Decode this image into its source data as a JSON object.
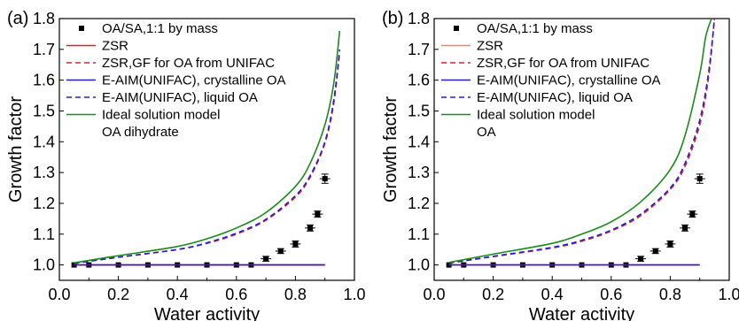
{
  "chart_data": [
    {
      "panel_label": "(a)",
      "type": "line",
      "xlabel": "Water activity",
      "ylabel": "Growth factor",
      "xlim": [
        0.0,
        1.0
      ],
      "ylim": [
        0.95,
        1.8
      ],
      "xticks": [
        0.0,
        0.2,
        0.4,
        0.6,
        0.8,
        1.0
      ],
      "xtick_labels": [
        "0.0",
        "0.2",
        "0.4",
        "0.6",
        "0.8",
        "1.0"
      ],
      "yticks": [
        1.0,
        1.1,
        1.2,
        1.3,
        1.4,
        1.5,
        1.6,
        1.7,
        1.8
      ],
      "ytick_labels": [
        "1.0",
        "1.1",
        "1.2",
        "1.3",
        "1.4",
        "1.5",
        "1.6",
        "1.7",
        "1.8"
      ],
      "legend_position": "top-left",
      "legend_extra": "OA dihydrate",
      "series": [
        {
          "name": "OA/SA,1:1 by mass",
          "style": "points",
          "color": "#000000",
          "x": [
            0.05,
            0.1,
            0.2,
            0.3,
            0.4,
            0.5,
            0.6,
            0.65,
            0.7,
            0.75,
            0.8,
            0.85,
            0.875,
            0.9
          ],
          "y": [
            1.0,
            1.0,
            1.0,
            1.0,
            1.0,
            1.0,
            1.0,
            1.0,
            1.02,
            1.045,
            1.068,
            1.12,
            1.165,
            1.28
          ],
          "yerr": [
            0,
            0,
            0,
            0,
            0,
            0,
            0,
            0,
            0.008,
            0.008,
            0.01,
            0.01,
            0.01,
            0.015
          ]
        },
        {
          "name": "ZSR",
          "style": "solid",
          "color": "#e02020",
          "x": [
            0.05,
            0.9
          ],
          "y": [
            1.0,
            1.0
          ]
        },
        {
          "name": "ZSR,GF for OA from UNIFAC",
          "style": "dashed",
          "color": "#e02020",
          "x": [
            0.05,
            0.2,
            0.4,
            0.5,
            0.6,
            0.7,
            0.8,
            0.85,
            0.9,
            0.93,
            0.95
          ],
          "y": [
            1.005,
            1.025,
            1.05,
            1.07,
            1.1,
            1.145,
            1.22,
            1.285,
            1.395,
            1.525,
            1.69
          ]
        },
        {
          "name": "E-AIM(UNIFAC), crystalline OA",
          "style": "solid",
          "color": "#2020d0",
          "x": [
            0.05,
            0.9
          ],
          "y": [
            1.0,
            1.0
          ]
        },
        {
          "name": "E-AIM(UNIFAC), liquid OA",
          "style": "dashed",
          "color": "#2020d0",
          "x": [
            0.05,
            0.2,
            0.4,
            0.5,
            0.6,
            0.7,
            0.8,
            0.85,
            0.9,
            0.93,
            0.95
          ],
          "y": [
            1.005,
            1.025,
            1.05,
            1.072,
            1.103,
            1.148,
            1.225,
            1.29,
            1.4,
            1.535,
            1.7
          ]
        },
        {
          "name": "Ideal solution model",
          "style": "solid",
          "color": "#1a8a1a",
          "x": [
            0.05,
            0.2,
            0.4,
            0.5,
            0.6,
            0.7,
            0.8,
            0.85,
            0.9,
            0.93,
            0.95
          ],
          "y": [
            1.007,
            1.03,
            1.06,
            1.085,
            1.12,
            1.17,
            1.255,
            1.33,
            1.455,
            1.59,
            1.76
          ]
        }
      ]
    },
    {
      "panel_label": "(b)",
      "type": "line",
      "xlabel": "Water activity",
      "ylabel": "Growth factor",
      "xlim": [
        0.0,
        1.0
      ],
      "ylim": [
        0.95,
        1.8
      ],
      "xticks": [
        0.0,
        0.2,
        0.4,
        0.6,
        0.8,
        1.0
      ],
      "xtick_labels": [
        "0.0",
        "0.2",
        "0.4",
        "0.6",
        "0.8",
        "1.0"
      ],
      "yticks": [
        1.0,
        1.1,
        1.2,
        1.3,
        1.4,
        1.5,
        1.6,
        1.7,
        1.8
      ],
      "ytick_labels": [
        "1.0",
        "1.1",
        "1.2",
        "1.3",
        "1.4",
        "1.5",
        "1.6",
        "1.7",
        "1.8"
      ],
      "legend_position": "top-left",
      "legend_extra": "OA",
      "series": [
        {
          "name": "OA/SA,1:1 by mass",
          "style": "points",
          "color": "#000000",
          "x": [
            0.05,
            0.1,
            0.2,
            0.3,
            0.4,
            0.5,
            0.6,
            0.65,
            0.7,
            0.75,
            0.8,
            0.85,
            0.875,
            0.9
          ],
          "y": [
            1.0,
            1.0,
            1.0,
            1.0,
            1.0,
            1.0,
            1.0,
            1.0,
            1.02,
            1.045,
            1.068,
            1.12,
            1.165,
            1.28
          ],
          "yerr": [
            0,
            0,
            0,
            0,
            0,
            0,
            0,
            0,
            0.008,
            0.008,
            0.01,
            0.01,
            0.01,
            0.015
          ]
        },
        {
          "name": "ZSR",
          "style": "solid",
          "color": "#f08080",
          "x": [
            0.05,
            0.9
          ],
          "y": [
            1.0,
            1.0
          ]
        },
        {
          "name": "ZSR,GF for OA from UNIFAC",
          "style": "dashed",
          "color": "#e02020",
          "x": [
            0.05,
            0.2,
            0.4,
            0.5,
            0.6,
            0.7,
            0.8,
            0.85,
            0.9,
            0.93,
            0.95
          ],
          "y": [
            1.006,
            1.027,
            1.055,
            1.077,
            1.11,
            1.16,
            1.245,
            1.32,
            1.455,
            1.61,
            1.8
          ]
        },
        {
          "name": "E-AIM(UNIFAC), crystalline OA",
          "style": "solid",
          "color": "#2020d0",
          "x": [
            0.05,
            0.9
          ],
          "y": [
            1.0,
            1.0
          ]
        },
        {
          "name": "E-AIM(UNIFAC), liquid OA",
          "style": "dashed",
          "color": "#2020d0",
          "x": [
            0.05,
            0.2,
            0.4,
            0.5,
            0.6,
            0.7,
            0.8,
            0.85,
            0.9,
            0.93,
            0.95
          ],
          "y": [
            1.006,
            1.028,
            1.057,
            1.08,
            1.113,
            1.165,
            1.25,
            1.33,
            1.47,
            1.625,
            1.8
          ]
        },
        {
          "name": "Ideal solution model",
          "style": "solid",
          "color": "#1a8a1a",
          "x": [
            0.05,
            0.2,
            0.4,
            0.5,
            0.6,
            0.7,
            0.8,
            0.85,
            0.9,
            0.92,
            0.94
          ],
          "y": [
            1.008,
            1.035,
            1.07,
            1.1,
            1.14,
            1.205,
            1.31,
            1.42,
            1.62,
            1.74,
            1.8
          ]
        }
      ]
    }
  ]
}
